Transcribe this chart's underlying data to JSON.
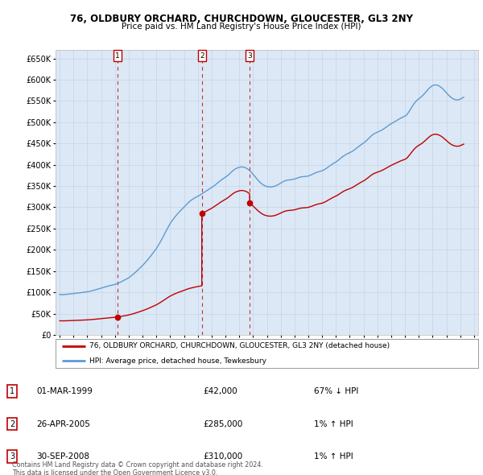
{
  "title": "76, OLDBURY ORCHARD, CHURCHDOWN, GLOUCESTER, GL3 2NY",
  "subtitle": "Price paid vs. HM Land Registry's House Price Index (HPI)",
  "legend_line1": "76, OLDBURY ORCHARD, CHURCHDOWN, GLOUCESTER, GL3 2NY (detached house)",
  "legend_line2": "HPI: Average price, detached house, Tewkesbury",
  "footer1": "Contains HM Land Registry data © Crown copyright and database right 2024.",
  "footer2": "This data is licensed under the Open Government Licence v3.0.",
  "transactions": [
    {
      "num": 1,
      "date": "01-MAR-1999",
      "price": 42000,
      "pct": "67% ↓ HPI",
      "x": 1999.17
    },
    {
      "num": 2,
      "date": "26-APR-2005",
      "price": 285000,
      "pct": "1% ↑ HPI",
      "x": 2005.29
    },
    {
      "num": 3,
      "date": "30-SEP-2008",
      "price": 310000,
      "pct": "1% ↑ HPI",
      "x": 2008.75
    }
  ],
  "hpi_color": "#5b9bd5",
  "price_color": "#c00000",
  "grid_color": "#c8d8e8",
  "background_color": "#ffffff",
  "plot_bg_color": "#dce8f5",
  "ylim": [
    0,
    670000
  ],
  "yticks": [
    0,
    50000,
    100000,
    150000,
    200000,
    250000,
    300000,
    350000,
    400000,
    450000,
    500000,
    550000,
    600000,
    650000
  ],
  "xticks": [
    1995,
    1996,
    1997,
    1998,
    1999,
    2000,
    2001,
    2002,
    2003,
    2004,
    2005,
    2006,
    2007,
    2008,
    2009,
    2010,
    2011,
    2012,
    2013,
    2014,
    2015,
    2016,
    2017,
    2018,
    2019,
    2020,
    2021,
    2022,
    2023,
    2024,
    2025
  ],
  "xlim": [
    1994.7,
    2025.3
  ],
  "hpi_monthly": [
    95000,
    94800,
    94600,
    94400,
    94700,
    95100,
    95500,
    95800,
    96000,
    96200,
    96500,
    96800,
    97000,
    97200,
    97500,
    97900,
    98200,
    98600,
    99000,
    99400,
    99800,
    100100,
    100400,
    100800,
    101200,
    101700,
    102200,
    102900,
    103600,
    104300,
    105100,
    105900,
    106700,
    107500,
    108300,
    109100,
    110000,
    110900,
    111600,
    112300,
    113100,
    113900,
    114700,
    115400,
    116000,
    116700,
    117300,
    117900,
    118600,
    119500,
    120500,
    121700,
    122900,
    124200,
    125600,
    126900,
    128200,
    129600,
    131100,
    132700,
    134300,
    136300,
    138400,
    140600,
    142900,
    145200,
    147600,
    150100,
    152700,
    155300,
    157900,
    160500,
    163200,
    166000,
    168900,
    172000,
    175200,
    178400,
    181700,
    185100,
    188600,
    192100,
    195700,
    199300,
    202900,
    207300,
    211800,
    216400,
    221200,
    226200,
    231400,
    236700,
    242100,
    247400,
    252500,
    257200,
    261800,
    265800,
    269600,
    273200,
    276700,
    280100,
    283400,
    286400,
    289300,
    292100,
    294800,
    297600,
    300400,
    303300,
    306100,
    309000,
    311600,
    313900,
    316100,
    318100,
    319900,
    321500,
    323000,
    324400,
    325800,
    327400,
    329000,
    330700,
    332400,
    334200,
    336000,
    337700,
    339500,
    341200,
    342900,
    344500,
    346200,
    348200,
    350200,
    352300,
    354500,
    356700,
    358900,
    361100,
    363200,
    365200,
    367100,
    368900,
    370600,
    372600,
    374800,
    377200,
    379800,
    382400,
    384900,
    387100,
    389100,
    390700,
    392000,
    393000,
    393900,
    394500,
    394800,
    394700,
    394200,
    393300,
    392100,
    390500,
    388500,
    386200,
    383600,
    380700,
    377600,
    374300,
    370900,
    367600,
    364400,
    361400,
    358700,
    356300,
    354200,
    352400,
    350900,
    349700,
    348800,
    348200,
    347800,
    347700,
    347800,
    348200,
    348800,
    349700,
    350800,
    352100,
    353600,
    355200,
    356900,
    358600,
    360100,
    361400,
    362500,
    363300,
    363900,
    364300,
    364600,
    364900,
    365200,
    365700,
    366400,
    367200,
    368200,
    369200,
    370100,
    370900,
    371500,
    371900,
    372100,
    372300,
    372500,
    372900,
    373500,
    374400,
    375500,
    376700,
    378000,
    379300,
    380600,
    381800,
    382800,
    383600,
    384300,
    385000,
    385800,
    387000,
    388400,
    390100,
    392000,
    394000,
    396100,
    398100,
    400000,
    401700,
    403300,
    404800,
    406400,
    408300,
    410400,
    412700,
    415000,
    417200,
    419300,
    421200,
    422900,
    424400,
    425700,
    426900,
    428100,
    429500,
    431100,
    432900,
    434900,
    437000,
    439200,
    441400,
    443500,
    445500,
    447300,
    449100,
    450800,
    452900,
    455300,
    457900,
    460600,
    463400,
    466000,
    468500,
    470600,
    472400,
    473900,
    475200,
    476400,
    477600,
    478800,
    480200,
    481700,
    483300,
    485100,
    487000,
    489000,
    491000,
    492900,
    494700,
    496400,
    498000,
    499700,
    501300,
    502900,
    504500,
    506000,
    507500,
    509000,
    510400,
    511700,
    512900,
    514200,
    516000,
    518900,
    522800,
    527100,
    531500,
    535800,
    540000,
    543900,
    547300,
    550300,
    552900,
    555100,
    557100,
    559200,
    561600,
    564300,
    567300,
    570400,
    573600,
    576700,
    579600,
    582200,
    584400,
    586000,
    587100,
    587700,
    587600,
    587000,
    586000,
    584500,
    582700,
    580500,
    578000,
    575200,
    572200,
    569100,
    566100,
    563200,
    560600,
    558300,
    556300,
    554800,
    553600,
    552900,
    552500,
    552600,
    553100,
    554100,
    555500,
    557100,
    558700
  ]
}
